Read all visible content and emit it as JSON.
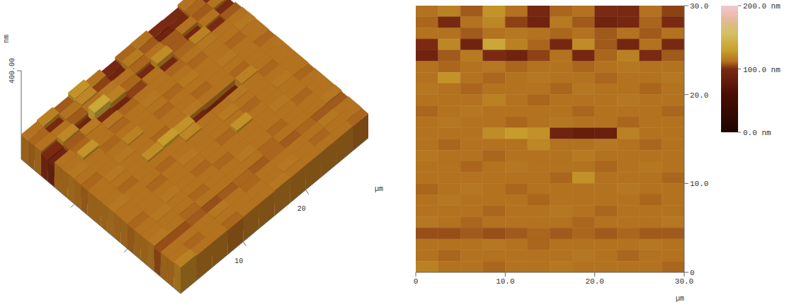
{
  "chart_data": [
    {
      "type": "surface",
      "z_label": "nm",
      "zlim": [
        0,
        400
      ],
      "zticks": [
        {
          "value": 400,
          "label": "400.00"
        }
      ],
      "x_label": "µm",
      "xlim": [
        0,
        30
      ],
      "ylim": [
        0,
        30
      ],
      "xticks": [
        10,
        20
      ]
    },
    {
      "type": "heatmap",
      "x_label": "µm",
      "xlim": [
        0,
        30
      ],
      "ylim": [
        0,
        30
      ],
      "xticks": [
        0,
        {
          "value": 10,
          "label": "10.0"
        },
        {
          "value": 20,
          "label": "20.0"
        },
        {
          "value": 30,
          "label": "30.0"
        }
      ],
      "yticks": [
        0,
        {
          "value": 10,
          "label": "10.0"
        },
        {
          "value": 20,
          "label": "20.0"
        },
        {
          "value": 30,
          "label": "30.0"
        }
      ],
      "cells": [
        [
          112,
          118,
          108,
          125,
          112,
          96,
          110,
          112,
          100,
          98,
          112,
          104
        ],
        [
          110,
          98,
          112,
          120,
          104,
          92,
          115,
          108,
          92,
          96,
          110,
          100
        ],
        [
          112,
          112,
          108,
          112,
          114,
          112,
          110,
          112,
          108,
          112,
          108,
          112
        ],
        [
          100,
          120,
          92,
          135,
          118,
          110,
          96,
          122,
          108,
          94,
          112,
          98
        ],
        [
          92,
          108,
          115,
          100,
          92,
          104,
          112,
          96,
          110,
          118,
          100,
          108
        ],
        [
          112,
          110,
          112,
          114,
          110,
          112,
          112,
          110,
          112,
          114,
          112,
          112
        ],
        [
          112,
          125,
          112,
          110,
          112,
          114,
          112,
          112,
          110,
          112,
          112,
          114
        ],
        [
          114,
          112,
          110,
          112,
          112,
          112,
          110,
          114,
          112,
          112,
          110,
          112
        ],
        [
          112,
          112,
          112,
          118,
          112,
          110,
          112,
          112,
          112,
          114,
          112,
          112
        ],
        [
          110,
          112,
          114,
          112,
          112,
          112,
          112,
          110,
          112,
          112,
          112,
          110
        ],
        [
          112,
          114,
          112,
          112,
          110,
          112,
          114,
          112,
          112,
          110,
          112,
          112
        ],
        [
          112,
          112,
          112,
          122,
          128,
          124,
          92,
          84,
          86,
          118,
          112,
          112
        ],
        [
          112,
          110,
          112,
          112,
          112,
          120,
          112,
          112,
          114,
          112,
          110,
          112
        ],
        [
          114,
          112,
          112,
          110,
          112,
          112,
          112,
          115,
          112,
          112,
          112,
          112
        ],
        [
          112,
          112,
          110,
          112,
          114,
          112,
          112,
          112,
          110,
          112,
          114,
          112
        ],
        [
          112,
          112,
          112,
          112,
          112,
          112,
          110,
          124,
          112,
          112,
          112,
          110
        ],
        [
          110,
          112,
          114,
          112,
          110,
          112,
          112,
          112,
          112,
          114,
          112,
          112
        ],
        [
          112,
          114,
          112,
          112,
          112,
          110,
          112,
          112,
          112,
          112,
          110,
          112
        ],
        [
          112,
          112,
          112,
          110,
          112,
          112,
          114,
          112,
          110,
          112,
          112,
          112
        ],
        [
          114,
          112,
          110,
          112,
          112,
          112,
          112,
          110,
          112,
          112,
          112,
          114
        ],
        [
          106,
          106,
          108,
          106,
          108,
          110,
          108,
          110,
          108,
          110,
          108,
          108
        ],
        [
          112,
          112,
          112,
          114,
          112,
          110,
          112,
          112,
          112,
          112,
          114,
          112
        ],
        [
          112,
          110,
          112,
          112,
          112,
          112,
          112,
          114,
          112,
          110,
          112,
          112
        ],
        [
          118,
          112,
          112,
          110,
          112,
          112,
          114,
          112,
          112,
          112,
          112,
          110
        ]
      ],
      "colorbar": {
        "range": [
          0,
          200
        ],
        "ticks": [
          {
            "value": 200,
            "label": "200.0 nm"
          },
          {
            "value": 100,
            "label": "100.0 nm"
          },
          {
            "value": 0,
            "label": "0.0 nm"
          }
        ]
      }
    }
  ]
}
